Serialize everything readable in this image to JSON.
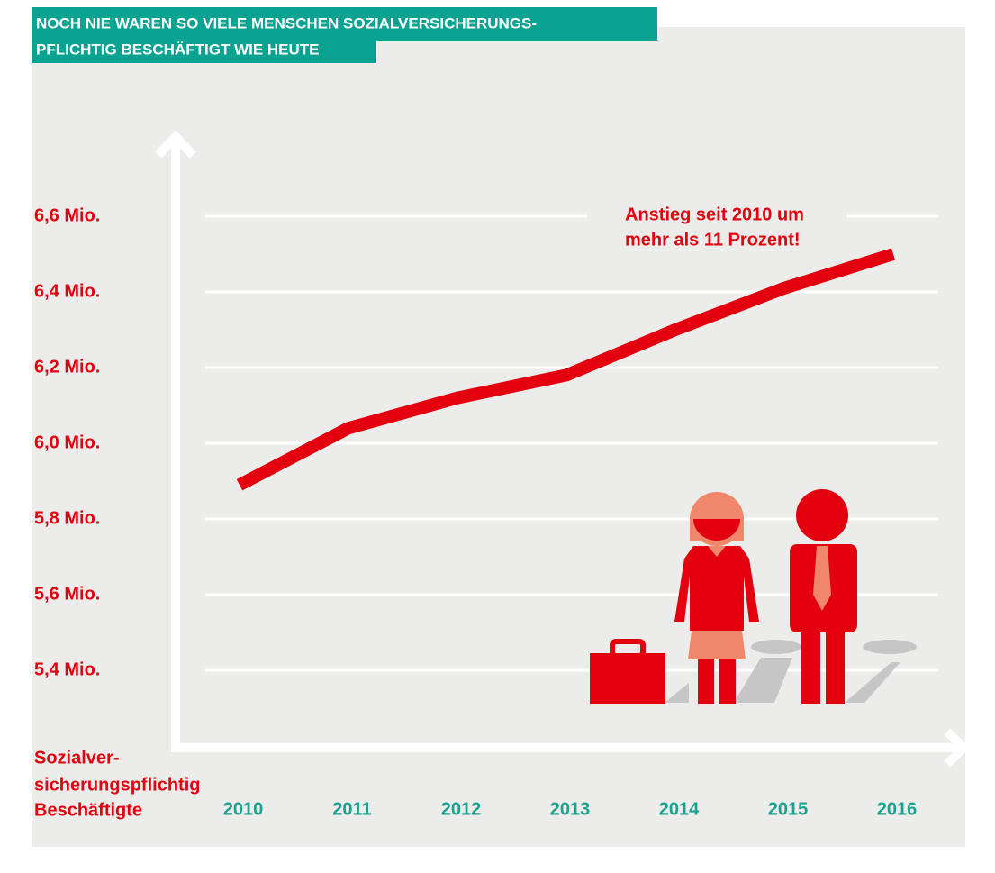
{
  "chart_data": {
    "type": "line",
    "title": [
      "NOCH NIE WAREN SO VIELE MENSCHEN SOZIALVERSICHERUNGS-",
      "PFLICHTIG BESCHÄFTIGT WIE HEUTE"
    ],
    "y_label": [
      "Sozialver-",
      "sicherungspflichtig",
      "Beschäftigte"
    ],
    "annotation": [
      "Anstieg seit 2010 um",
      "mehr als 11 Prozent!"
    ],
    "categories": [
      "2010",
      "2011",
      "2012",
      "2013",
      "2014",
      "2015",
      "2016"
    ],
    "values": [
      5.89,
      6.04,
      6.12,
      6.18,
      6.3,
      6.41,
      6.5
    ],
    "color": "#e3000f",
    "ylim": [
      5.2,
      6.8
    ],
    "yticks": [
      {
        "value": 5.4,
        "label": "5,4 Mio."
      },
      {
        "value": 5.6,
        "label": "5,6 Mio."
      },
      {
        "value": 5.8,
        "label": "5,8 Mio."
      },
      {
        "value": 6.0,
        "label": "6,0 Mio."
      },
      {
        "value": 6.2,
        "label": "6,2 Mio."
      },
      {
        "value": 6.4,
        "label": "6,4 Mio."
      },
      {
        "value": 6.6,
        "label": "6,6 Mio."
      }
    ],
    "grid": true
  }
}
